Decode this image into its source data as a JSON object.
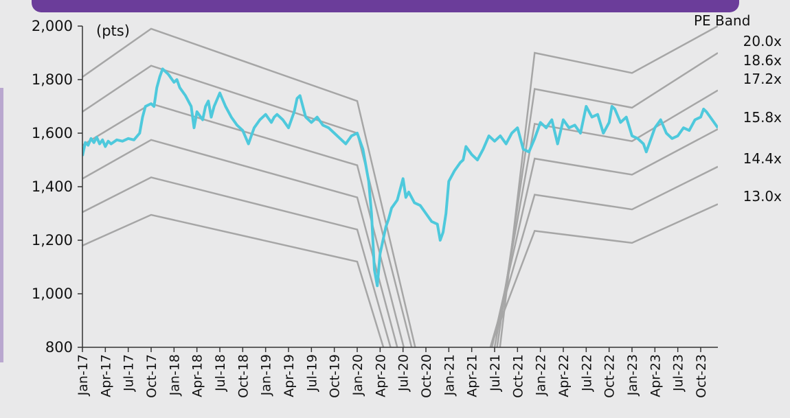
{
  "chart_data": {
    "type": "line",
    "unit_label": "(pts)",
    "legend_title": "PE Band",
    "ylim": [
      800,
      2000
    ],
    "yticks": [
      "2,000",
      "1,800",
      "1,600",
      "1,400",
      "1,200",
      "1,000",
      "800"
    ],
    "ytick_values": [
      2000,
      1800,
      1600,
      1400,
      1200,
      1000,
      800
    ],
    "x_tick_labels": [
      "Jan-17",
      "Apr-17",
      "Jul-17",
      "Oct-17",
      "Jan-18",
      "Apr-18",
      "Jul-18",
      "Oct-18",
      "Jan-19",
      "Apr-19",
      "Jul-19",
      "Oct-19",
      "Jan-20",
      "Apr-20",
      "Jul-20",
      "Oct-20",
      "Jan-21",
      "Apr-21",
      "Jul-21",
      "Oct-21",
      "Jan-22",
      "Apr-22",
      "Jul-22",
      "Oct-22",
      "Jan-23",
      "Apr-23",
      "Jul-23",
      "Oct-23"
    ],
    "grid": false,
    "colors": {
      "index": "#4ec9dc",
      "bands": "#a6a6a6",
      "background": "#e9e9ea"
    },
    "bands": [
      {
        "label": "20.0x",
        "points": [
          [
            0,
            1810
          ],
          [
            12,
            1990
          ],
          [
            48,
            1720
          ],
          [
            60,
            630
          ],
          [
            72,
            630
          ],
          [
            79,
            1900
          ],
          [
            96,
            1825
          ],
          [
            111,
            2000
          ]
        ]
      },
      {
        "label": "18.6x",
        "points": [
          [
            0,
            1680
          ],
          [
            12,
            1852
          ],
          [
            48,
            1600
          ],
          [
            60,
            590
          ],
          [
            71,
            590
          ],
          [
            79,
            1765
          ],
          [
            96,
            1695
          ],
          [
            111,
            1900
          ]
        ]
      },
      {
        "label": "17.2x",
        "points": [
          [
            0,
            1555
          ],
          [
            12,
            1710
          ],
          [
            48,
            1480
          ],
          [
            59,
            560
          ],
          [
            70,
            560
          ],
          [
            79,
            1635
          ],
          [
            96,
            1570
          ],
          [
            111,
            1760
          ]
        ]
      },
      {
        "label": "15.8x",
        "points": [
          [
            0,
            1430
          ],
          [
            12,
            1575
          ],
          [
            48,
            1360
          ],
          [
            58,
            560
          ],
          [
            69,
            560
          ],
          [
            79,
            1505
          ],
          [
            96,
            1445
          ],
          [
            111,
            1615
          ]
        ]
      },
      {
        "label": "14.4x",
        "points": [
          [
            0,
            1305
          ],
          [
            12,
            1435
          ],
          [
            48,
            1240
          ],
          [
            57,
            560
          ],
          [
            68,
            560
          ],
          [
            79,
            1370
          ],
          [
            96,
            1315
          ],
          [
            111,
            1475
          ]
        ]
      },
      {
        "label": "13.0x",
        "points": [
          [
            0,
            1180
          ],
          [
            12,
            1295
          ],
          [
            48,
            1120
          ],
          [
            56,
            560
          ],
          [
            67,
            560
          ],
          [
            79,
            1235
          ],
          [
            96,
            1190
          ],
          [
            111,
            1335
          ]
        ]
      }
    ],
    "index_series": {
      "name": "",
      "points": [
        [
          0,
          1515
        ],
        [
          0.5,
          1565
        ],
        [
          1,
          1555
        ],
        [
          1.5,
          1580
        ],
        [
          2,
          1565
        ],
        [
          2.5,
          1585
        ],
        [
          3,
          1560
        ],
        [
          3.5,
          1575
        ],
        [
          4,
          1550
        ],
        [
          4.5,
          1570
        ],
        [
          5,
          1560
        ],
        [
          6,
          1575
        ],
        [
          7,
          1570
        ],
        [
          8,
          1580
        ],
        [
          9,
          1575
        ],
        [
          10,
          1600
        ],
        [
          10.5,
          1660
        ],
        [
          11,
          1700
        ],
        [
          12,
          1710
        ],
        [
          12.5,
          1700
        ],
        [
          13,
          1770
        ],
        [
          13.5,
          1810
        ],
        [
          14,
          1840
        ],
        [
          15,
          1820
        ],
        [
          16,
          1790
        ],
        [
          16.5,
          1800
        ],
        [
          17,
          1770
        ],
        [
          18,
          1740
        ],
        [
          19,
          1700
        ],
        [
          19.5,
          1620
        ],
        [
          20,
          1680
        ],
        [
          21,
          1650
        ],
        [
          21.5,
          1700
        ],
        [
          22,
          1720
        ],
        [
          22.5,
          1660
        ],
        [
          23,
          1700
        ],
        [
          24,
          1750
        ],
        [
          25,
          1700
        ],
        [
          26,
          1660
        ],
        [
          27,
          1630
        ],
        [
          28,
          1610
        ],
        [
          29,
          1560
        ],
        [
          29.5,
          1590
        ],
        [
          30,
          1620
        ],
        [
          31,
          1650
        ],
        [
          32,
          1670
        ],
        [
          33,
          1640
        ],
        [
          33.5,
          1660
        ],
        [
          34,
          1670
        ],
        [
          35,
          1650
        ],
        [
          36,
          1620
        ],
        [
          37,
          1680
        ],
        [
          37.5,
          1730
        ],
        [
          38,
          1740
        ],
        [
          39,
          1660
        ],
        [
          40,
          1640
        ],
        [
          41,
          1660
        ],
        [
          42,
          1630
        ],
        [
          43,
          1620
        ],
        [
          44,
          1600
        ],
        [
          45,
          1580
        ],
        [
          46,
          1560
        ],
        [
          47,
          1590
        ],
        [
          48,
          1600
        ],
        [
          49,
          1540
        ],
        [
          50,
          1420
        ],
        [
          50.5,
          1300
        ],
        [
          51,
          1090
        ],
        [
          51.5,
          1030
        ],
        [
          52,
          1150
        ],
        [
          52.5,
          1200
        ],
        [
          53,
          1250
        ],
        [
          53.5,
          1280
        ],
        [
          54,
          1320
        ],
        [
          55,
          1350
        ],
        [
          56,
          1430
        ],
        [
          56.5,
          1360
        ],
        [
          57,
          1380
        ],
        [
          58,
          1340
        ],
        [
          59,
          1330
        ],
        [
          60,
          1300
        ],
        [
          61,
          1270
        ],
        [
          62,
          1260
        ],
        [
          62.5,
          1200
        ],
        [
          63,
          1230
        ],
        [
          63.5,
          1300
        ],
        [
          64,
          1420
        ],
        [
          65,
          1460
        ],
        [
          66,
          1490
        ],
        [
          66.5,
          1500
        ],
        [
          67,
          1550
        ],
        [
          68,
          1520
        ],
        [
          69,
          1500
        ],
        [
          70,
          1540
        ],
        [
          71,
          1590
        ],
        [
          72,
          1570
        ],
        [
          73,
          1590
        ],
        [
          74,
          1560
        ],
        [
          75,
          1600
        ],
        [
          76,
          1620
        ],
        [
          77,
          1540
        ],
        [
          78,
          1530
        ],
        [
          79,
          1580
        ],
        [
          80,
          1640
        ],
        [
          81,
          1620
        ],
        [
          82,
          1650
        ],
        [
          83,
          1560
        ],
        [
          84,
          1650
        ],
        [
          85,
          1620
        ],
        [
          86,
          1630
        ],
        [
          87,
          1600
        ],
        [
          88,
          1700
        ],
        [
          89,
          1660
        ],
        [
          90,
          1670
        ],
        [
          91,
          1600
        ],
        [
          92,
          1640
        ],
        [
          92.5,
          1700
        ],
        [
          93,
          1690
        ],
        [
          94,
          1640
        ],
        [
          95,
          1660
        ],
        [
          96,
          1590
        ],
        [
          97,
          1580
        ],
        [
          98,
          1560
        ],
        [
          98.5,
          1530
        ],
        [
          99,
          1560
        ],
        [
          100,
          1620
        ],
        [
          101,
          1650
        ],
        [
          102,
          1600
        ],
        [
          103,
          1580
        ],
        [
          104,
          1590
        ],
        [
          105,
          1620
        ],
        [
          106,
          1610
        ],
        [
          107,
          1650
        ],
        [
          108,
          1660
        ],
        [
          108.5,
          1690
        ],
        [
          109,
          1680
        ],
        [
          110,
          1650
        ],
        [
          111,
          1620
        ]
      ]
    }
  }
}
